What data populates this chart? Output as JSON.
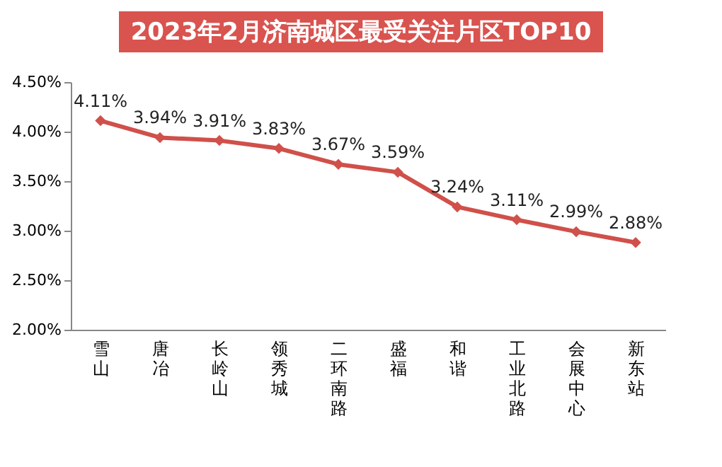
{
  "chart_data": {
    "type": "line",
    "title": "2023年2月济南城区最受关注片区TOP10",
    "categories": [
      "雪山",
      "唐冶",
      "长岭山",
      "领秀城",
      "二环南路",
      "盛福",
      "和谐",
      "工业北路",
      "会展中心",
      "新东站"
    ],
    "series": [
      {
        "color": "#d0504a",
        "values": [
          4.11,
          3.94,
          3.91,
          3.83,
          3.67,
          3.59,
          3.24,
          3.11,
          2.99,
          2.88
        ]
      }
    ],
    "value_labels": [
      "4.11%",
      "3.94%",
      "3.91%",
      "3.83%",
      "3.67%",
      "3.59%",
      "3.24%",
      "3.11%",
      "2.99%",
      "2.88%"
    ],
    "ylim": [
      2.0,
      4.5
    ],
    "yticks": [
      {
        "value": 2.0,
        "label": "2.00%"
      },
      {
        "value": 2.5,
        "label": "2.50%"
      },
      {
        "value": 3.0,
        "label": "3.00%"
      },
      {
        "value": 3.5,
        "label": "3.50%"
      },
      {
        "value": 4.0,
        "label": "4.00%"
      },
      {
        "value": 4.5,
        "label": "4.50%"
      }
    ],
    "marker": "diamond",
    "line_style": "solid",
    "grid": false,
    "legend": false
  }
}
